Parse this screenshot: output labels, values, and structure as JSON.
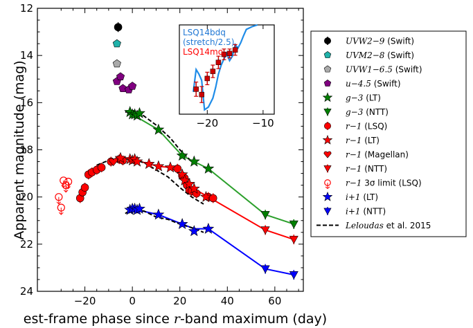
{
  "chart_data": {
    "type": "line",
    "xlabel": "Rest-frame phase since r-band maximum (day)",
    "xlabel_parts": [
      "est-frame phase since ",
      "r",
      "-band maximum (day)"
    ],
    "ylabel": "Apparent magnitude (mag)",
    "xlim": [
      -40,
      72
    ],
    "ylim": [
      24,
      12
    ],
    "y_inverted": true,
    "grid": false,
    "legend_placement": "right outside",
    "x_ticks": [
      -20,
      0,
      20,
      40,
      60
    ],
    "y_ticks": [
      12,
      14,
      16,
      18,
      20,
      22,
      24
    ],
    "x_tick_labels": [
      "−20",
      "0",
      "20",
      "40",
      "60"
    ],
    "series": [
      {
        "name": "UVW2−9 (Swift)",
        "color": "#000000",
        "marker": "circle-filled",
        "points": [
          [
            -6,
            12.8
          ]
        ]
      },
      {
        "name": "UVM2−8 (Swift)",
        "color": "#20b2aa",
        "marker": "pentagon",
        "points": [
          [
            -6.5,
            13.5
          ]
        ]
      },
      {
        "name": "UVW1−6.5 (Swift)",
        "color": "#aaaaaa",
        "marker": "pentagon",
        "points": [
          [
            -6.5,
            14.35
          ]
        ]
      },
      {
        "name": "u−4.5 (Swift)",
        "color": "#800080",
        "marker": "pentagon",
        "points": [
          [
            -6.5,
            15.1
          ],
          [
            -5,
            14.9
          ],
          [
            -4,
            15.4
          ],
          [
            -1.5,
            15.45
          ],
          [
            0,
            15.3
          ]
        ]
      },
      {
        "name": "g−3 (LT)",
        "color": "#008000",
        "marker": "star",
        "points": [
          [
            -1,
            16.4
          ],
          [
            0,
            16.5
          ],
          [
            1,
            16.5
          ],
          [
            2,
            16.55
          ],
          [
            3,
            16.45
          ],
          [
            11,
            17.15
          ],
          [
            21,
            18.25
          ],
          [
            26,
            18.5
          ],
          [
            32,
            18.8
          ]
        ]
      },
      {
        "name": "g−3 (NTT)",
        "color": "#008000",
        "marker": "triangle-down",
        "points": [
          [
            56,
            20.75
          ],
          [
            68,
            21.15
          ]
        ]
      },
      {
        "name": "r−1 (LSQ)",
        "color": "#ff0000",
        "marker": "circle-filled",
        "points": [
          [
            -22,
            20.05
          ],
          [
            -21,
            19.8
          ],
          [
            -20,
            19.6
          ],
          [
            -18.5,
            19.05
          ],
          [
            -17,
            18.95
          ],
          [
            -15,
            18.85
          ],
          [
            -13,
            18.75
          ],
          [
            -9,
            18.5
          ],
          [
            -5.5,
            18.4
          ],
          [
            -4,
            18.45
          ],
          [
            19,
            18.8
          ],
          [
            21,
            19.1
          ],
          [
            22,
            19.2
          ],
          [
            23,
            19.5
          ],
          [
            24,
            19.7
          ],
          [
            25,
            19.75
          ],
          [
            27,
            19.85
          ],
          [
            32,
            20.0
          ],
          [
            34,
            20.05
          ]
        ]
      },
      {
        "name": "r−1 (LT)",
        "color": "#ff0000",
        "marker": "star",
        "points": [
          [
            -5,
            18.35
          ],
          [
            -1,
            18.4
          ],
          [
            0,
            18.45
          ],
          [
            1,
            18.4
          ],
          [
            2,
            18.5
          ],
          [
            7,
            18.6
          ],
          [
            11,
            18.7
          ],
          [
            16,
            18.75
          ],
          [
            21,
            19.05
          ],
          [
            22,
            19.3
          ],
          [
            24,
            19.45
          ],
          [
            26,
            19.65
          ],
          [
            31,
            20.0
          ]
        ]
      },
      {
        "name": "r−1 (Magellan)",
        "color": "#ff0000",
        "marker": "heart",
        "points": [
          [
            -8,
            18.5
          ]
        ]
      },
      {
        "name": "r−1 (NTT)",
        "color": "#ff0000",
        "marker": "triangle-down",
        "points": [
          [
            56,
            21.4
          ],
          [
            68,
            21.8
          ]
        ]
      },
      {
        "name": "r−1 3σ limit (LSQ)",
        "color": "#ff0000",
        "marker": "circle-open-limit",
        "points": [
          [
            -31,
            20.0
          ],
          [
            -30,
            20.45
          ],
          [
            -29,
            19.3
          ],
          [
            -28,
            19.5
          ],
          [
            -27,
            19.35
          ]
        ]
      },
      {
        "name": "i+1 (LT)",
        "color": "#0000ff",
        "marker": "star",
        "points": [
          [
            -1,
            20.55
          ],
          [
            0,
            20.5
          ],
          [
            1,
            20.5
          ],
          [
            2,
            20.55
          ],
          [
            3,
            20.5
          ],
          [
            11,
            20.75
          ],
          [
            21,
            21.15
          ],
          [
            26,
            21.45
          ],
          [
            32,
            21.35
          ]
        ]
      },
      {
        "name": "i+1 (NTT)",
        "color": "#0000ff",
        "marker": "triangle-down",
        "points": [
          [
            56,
            23.05
          ],
          [
            68,
            23.3
          ]
        ]
      },
      {
        "name": "Leloudas et al. 2015",
        "color": "#000000",
        "marker": "dashed-line",
        "curves": [
          [
            [
              -3,
              16.4
            ],
            [
              0,
              16.35
            ],
            [
              4,
              16.5
            ],
            [
              10,
              16.95
            ],
            [
              16,
              17.5
            ],
            [
              20,
              18.0
            ],
            [
              24,
              18.4
            ]
          ],
          [
            [
              -15,
              18.65
            ],
            [
              -10,
              18.45
            ],
            [
              -5,
              18.35
            ],
            [
              0,
              18.4
            ],
            [
              5,
              18.55
            ],
            [
              10,
              18.85
            ],
            [
              15,
              19.15
            ],
            [
              20,
              19.6
            ],
            [
              25,
              20.0
            ],
            [
              30,
              20.3
            ]
          ],
          [
            [
              -3,
              20.7
            ],
            [
              0,
              20.5
            ],
            [
              5,
              20.6
            ],
            [
              10,
              20.85
            ],
            [
              15,
              20.95
            ],
            [
              20,
              21.15
            ],
            [
              25,
              21.3
            ],
            [
              30,
              21.5
            ]
          ]
        ]
      }
    ],
    "fit_lines": [
      {
        "color": "#2ca02c",
        "points": [
          [
            0,
            16.5
          ],
          [
            11,
            17.15
          ],
          [
            21,
            18.25
          ],
          [
            26,
            18.5
          ],
          [
            32,
            18.8
          ],
          [
            56,
            20.75
          ],
          [
            68,
            21.15
          ]
        ]
      },
      {
        "color": "#ff0000",
        "points": [
          [
            0,
            18.4
          ],
          [
            7,
            18.6
          ],
          [
            11,
            18.7
          ],
          [
            16,
            18.75
          ],
          [
            21,
            19.05
          ],
          [
            25,
            19.6
          ],
          [
            32,
            20.0
          ],
          [
            56,
            21.4
          ],
          [
            68,
            21.8
          ]
        ]
      },
      {
        "color": "#0000ff",
        "points": [
          [
            0,
            20.5
          ],
          [
            11,
            20.75
          ],
          [
            21,
            21.15
          ],
          [
            26,
            21.35
          ],
          [
            32,
            21.35
          ],
          [
            56,
            23.05
          ],
          [
            68,
            23.3
          ]
        ]
      }
    ],
    "inset": {
      "xlim": [
        -25,
        -8
      ],
      "x_ticks": [
        -20,
        -10
      ],
      "x_tick_labels": [
        "−20",
        "−10"
      ],
      "labels": [
        {
          "text": "LSQ14bdq",
          "color": "#1f77d4"
        },
        {
          "text": "(stretch/2.5)",
          "color": "#1f77d4"
        },
        {
          "text": "LSQ14mo",
          "color": "#ff0000"
        }
      ],
      "curve": [
        [
          -22.5,
          0.75
        ],
        [
          -22,
          0.5
        ],
        [
          -21.5,
          0.55
        ],
        [
          -21,
          0.62
        ],
        [
          -20.5,
          0.95
        ],
        [
          -19.8,
          0.92
        ],
        [
          -19,
          0.82
        ],
        [
          -18.5,
          0.7
        ],
        [
          -18,
          0.55
        ],
        [
          -17.5,
          0.45
        ],
        [
          -17,
          0.38
        ],
        [
          -16.5,
          0.32
        ],
        [
          -16,
          0.4
        ],
        [
          -15.5,
          0.35
        ],
        [
          -15,
          0.22
        ],
        [
          -14.5,
          0.26
        ],
        [
          -14,
          0.2
        ],
        [
          -13.5,
          0.12
        ],
        [
          -13,
          0.05
        ],
        [
          -12,
          0.02
        ],
        [
          -11,
          0.0
        ]
      ],
      "points": [
        [
          -22,
          0.72
        ],
        [
          -21,
          0.78
        ],
        [
          -20,
          0.6
        ],
        [
          -19,
          0.52
        ],
        [
          -18,
          0.42
        ],
        [
          -17,
          0.33
        ],
        [
          -16,
          0.32
        ],
        [
          -15,
          0.28
        ]
      ],
      "point_errors": [
        0.08,
        0.09,
        0.07,
        0.07,
        0.07,
        0.06,
        0.05,
        0.06
      ],
      "curve_color": "#1f8ce8",
      "point_color": "#cc0000"
    }
  }
}
